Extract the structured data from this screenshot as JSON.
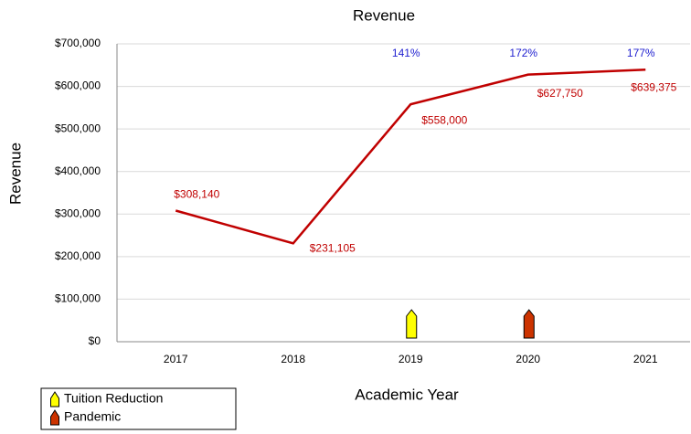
{
  "chart_data": {
    "type": "line",
    "title": "Revenue",
    "x_label": "Academic Year",
    "y_label": "Revenue",
    "categories": [
      "2017",
      "2018",
      "2019",
      "2020",
      "2021"
    ],
    "series": [
      {
        "name": "Revenue",
        "color": "#c00000",
        "values": [
          308140,
          231105,
          558000,
          627750,
          639375
        ],
        "value_labels": [
          "$308,140",
          "$231,105",
          "$558,000",
          "$627,750",
          "$639,375"
        ]
      }
    ],
    "ylim": [
      0,
      700000
    ],
    "yticks": [
      {
        "value": 0,
        "label": "$0"
      },
      {
        "value": 100000,
        "label": "$100,000"
      },
      {
        "value": 200000,
        "label": "$200,000"
      },
      {
        "value": 300000,
        "label": "$300,000"
      },
      {
        "value": 400000,
        "label": "$400,000"
      },
      {
        "value": 500000,
        "label": "$500,000"
      },
      {
        "value": 600000,
        "label": "$600,000"
      },
      {
        "value": 700000,
        "label": "$700,000"
      }
    ],
    "grid": true,
    "annotations": [
      {
        "x": "2019",
        "text": "141%"
      },
      {
        "x": "2020",
        "text": "172%"
      },
      {
        "x": "2021",
        "text": "177%"
      }
    ],
    "annotation_color": "#2020d0",
    "events": [
      {
        "name": "Tuition Reduction",
        "color": "#ffff00",
        "x": "2019"
      },
      {
        "name": "Pandemic",
        "color": "#cc3300",
        "x": "2020"
      }
    ],
    "legend": "bottom-left"
  }
}
